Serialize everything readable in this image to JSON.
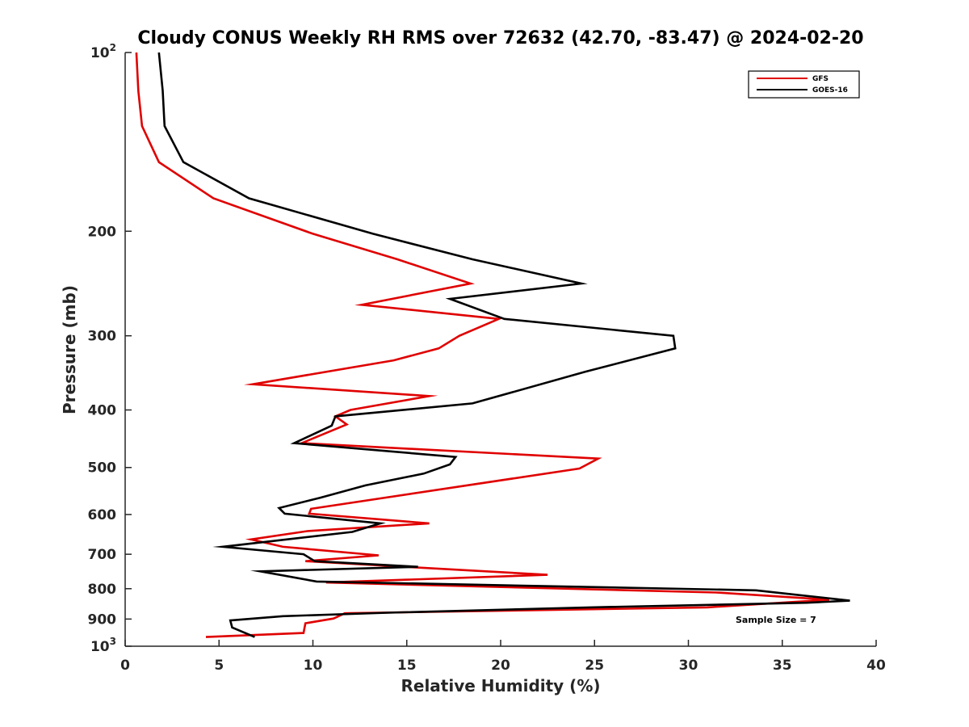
{
  "colors": {
    "GFS": "#e00000",
    "GOES-16": "#000000",
    "axis": "#262626"
  },
  "chart_data": {
    "type": "line",
    "title": "Cloudy CONUS Weekly RH RMS over 72632 (42.70, -83.47) @ 2024-02-20",
    "xlabel": "Relative Humidity (%)",
    "ylabel": "Pressure (mb)",
    "xlim": [
      0,
      40
    ],
    "ylim": [
      100,
      1000
    ],
    "y_scale": "log",
    "y_reversed": true,
    "grid": false,
    "legend_position": "top-right",
    "annotation": "Sample Size = 7",
    "x_ticks": [
      {
        "value": 0,
        "label": "0"
      },
      {
        "value": 5,
        "label": "5"
      },
      {
        "value": 10,
        "label": "10"
      },
      {
        "value": 15,
        "label": "15"
      },
      {
        "value": 20,
        "label": "20"
      },
      {
        "value": 25,
        "label": "25"
      },
      {
        "value": 30,
        "label": "30"
      },
      {
        "value": 35,
        "label": "35"
      },
      {
        "value": 40,
        "label": "40"
      }
    ],
    "y_ticks": [
      {
        "value": 100,
        "base": "10",
        "exp": "2"
      },
      {
        "value": 200,
        "label": "200"
      },
      {
        "value": 300,
        "label": "300"
      },
      {
        "value": 400,
        "label": "400"
      },
      {
        "value": 500,
        "label": "500"
      },
      {
        "value": 600,
        "label": "600"
      },
      {
        "value": 700,
        "label": "700"
      },
      {
        "value": 800,
        "label": "800"
      },
      {
        "value": 900,
        "label": "900"
      },
      {
        "value": 1000,
        "base": "10",
        "exp": "3"
      }
    ],
    "series": [
      {
        "name": "GFS",
        "color": "#e00000",
        "points": [
          [
            0.6,
            100
          ],
          [
            0.7,
            116
          ],
          [
            0.9,
            133
          ],
          [
            1.8,
            153
          ],
          [
            4.7,
            176
          ],
          [
            10.0,
            202
          ],
          [
            14.5,
            223
          ],
          [
            18.4,
            245
          ],
          [
            12.6,
            266
          ],
          [
            19.9,
            281
          ],
          [
            17.8,
            300
          ],
          [
            16.7,
            315
          ],
          [
            14.3,
            330
          ],
          [
            6.8,
            362
          ],
          [
            16.2,
            379
          ],
          [
            12.0,
            400
          ],
          [
            11.2,
            410
          ],
          [
            11.8,
            423
          ],
          [
            9.4,
            455
          ],
          [
            25.2,
            483
          ],
          [
            24.2,
            502
          ],
          [
            9.9,
            587
          ],
          [
            9.8,
            598
          ],
          [
            16.2,
            621
          ],
          [
            9.7,
            640
          ],
          [
            6.7,
            661
          ],
          [
            8.4,
            680
          ],
          [
            13.5,
            703
          ],
          [
            9.6,
            719
          ],
          [
            22.5,
            758
          ],
          [
            10.7,
            781
          ],
          [
            31.5,
            812
          ],
          [
            37.5,
            835
          ],
          [
            31.0,
            860
          ],
          [
            11.7,
            880
          ],
          [
            11.1,
            898
          ],
          [
            9.6,
            915
          ],
          [
            9.5,
            950
          ],
          [
            4.3,
            965
          ]
        ]
      },
      {
        "name": "GOES-16",
        "color": "#000000",
        "points": [
          [
            1.8,
            100
          ],
          [
            2.0,
            116
          ],
          [
            2.1,
            133
          ],
          [
            3.1,
            153
          ],
          [
            6.6,
            176
          ],
          [
            13.2,
            202
          ],
          [
            18.5,
            223
          ],
          [
            24.3,
            245
          ],
          [
            17.3,
            260
          ],
          [
            20.2,
            281
          ],
          [
            29.2,
            300
          ],
          [
            29.3,
            315
          ],
          [
            24.5,
            345
          ],
          [
            18.5,
            390
          ],
          [
            11.2,
            410
          ],
          [
            11.0,
            425
          ],
          [
            9.0,
            455
          ],
          [
            17.6,
            480
          ],
          [
            17.3,
            494
          ],
          [
            15.9,
            512
          ],
          [
            12.8,
            536
          ],
          [
            10.4,
            562
          ],
          [
            8.2,
            585
          ],
          [
            8.5,
            598
          ],
          [
            13.6,
            621
          ],
          [
            12.1,
            642
          ],
          [
            5.2,
            680
          ],
          [
            9.5,
            700
          ],
          [
            10.1,
            719
          ],
          [
            15.6,
            735
          ],
          [
            7.2,
            748
          ],
          [
            10.2,
            778
          ],
          [
            33.6,
            805
          ],
          [
            38.6,
            838
          ],
          [
            36.3,
            845
          ],
          [
            24.8,
            860
          ],
          [
            14.0,
            878
          ],
          [
            8.4,
            890
          ],
          [
            5.6,
            905
          ],
          [
            5.7,
            930
          ],
          [
            6.9,
            965
          ]
        ]
      }
    ]
  }
}
